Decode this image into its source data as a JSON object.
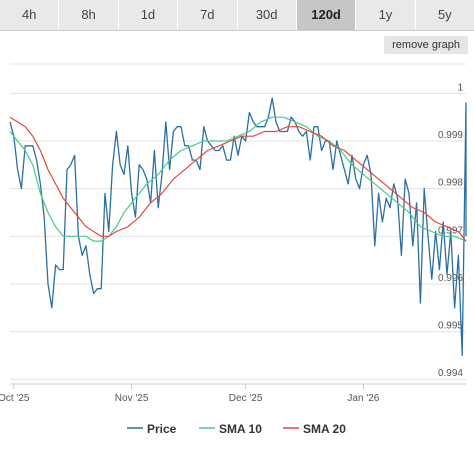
{
  "tabs": [
    {
      "label": "4h",
      "active": false
    },
    {
      "label": "8h",
      "active": false
    },
    {
      "label": "1d",
      "active": false
    },
    {
      "label": "7d",
      "active": false
    },
    {
      "label": "30d",
      "active": false
    },
    {
      "label": "120d",
      "active": true
    },
    {
      "label": "1y",
      "active": false
    },
    {
      "label": "5y",
      "active": false
    }
  ],
  "remove_graph_label": "remove graph",
  "chart_data": {
    "type": "line",
    "title": "",
    "xlabel": "",
    "ylabel": "",
    "ylim": [
      0.9939,
      1.0007
    ],
    "grid": true,
    "legend_position": "bottom",
    "y_ticks": [
      {
        "value": 1.0,
        "label": "1"
      },
      {
        "value": 0.999,
        "label": "0.999"
      },
      {
        "value": 0.998,
        "label": "0.998"
      },
      {
        "value": 0.997,
        "label": "0.997"
      },
      {
        "value": 0.996,
        "label": "0.996"
      },
      {
        "value": 0.995,
        "label": "0.995"
      },
      {
        "value": 0.994,
        "label": "0.994"
      }
    ],
    "x_ticks": [
      {
        "date": "2025-10-01",
        "label": "Oct '25"
      },
      {
        "date": "2025-11-01",
        "label": "Nov '25"
      },
      {
        "date": "2025-12-01",
        "label": "Dec '25"
      },
      {
        "date": "2026-01-01",
        "label": "Jan '26"
      }
    ],
    "x_range": [
      "2025-09-30",
      "2026-01-28"
    ],
    "series": [
      {
        "name": "Price",
        "color": "#2c6fa3",
        "points": [
          [
            "2025-09-30",
            0.9994
          ],
          [
            "2025-10-01",
            0.9991
          ],
          [
            "2025-10-02",
            0.9984
          ],
          [
            "2025-10-03",
            0.998
          ],
          [
            "2025-10-04",
            0.9989
          ],
          [
            "2025-10-05",
            0.9989
          ],
          [
            "2025-10-06",
            0.9989
          ],
          [
            "2025-10-07",
            0.9986
          ],
          [
            "2025-10-08",
            0.9981
          ],
          [
            "2025-10-09",
            0.9974
          ],
          [
            "2025-10-10",
            0.996
          ],
          [
            "2025-10-11",
            0.9955
          ],
          [
            "2025-10-12",
            0.9964
          ],
          [
            "2025-10-13",
            0.9963
          ],
          [
            "2025-10-14",
            0.9963
          ],
          [
            "2025-10-15",
            0.9984
          ],
          [
            "2025-10-16",
            0.9985
          ],
          [
            "2025-10-17",
            0.9987
          ],
          [
            "2025-10-18",
            0.997
          ],
          [
            "2025-10-19",
            0.9966
          ],
          [
            "2025-10-20",
            0.9968
          ],
          [
            "2025-10-21",
            0.9962
          ],
          [
            "2025-10-22",
            0.9958
          ],
          [
            "2025-10-23",
            0.9959
          ],
          [
            "2025-10-24",
            0.9959
          ],
          [
            "2025-10-25",
            0.9979
          ],
          [
            "2025-10-26",
            0.9971
          ],
          [
            "2025-10-27",
            0.9985
          ],
          [
            "2025-10-28",
            0.9992
          ],
          [
            "2025-10-29",
            0.9985
          ],
          [
            "2025-10-30",
            0.9983
          ],
          [
            "2025-10-31",
            0.9989
          ],
          [
            "2025-11-01",
            0.9979
          ],
          [
            "2025-11-02",
            0.9974
          ],
          [
            "2025-11-03",
            0.9985
          ],
          [
            "2025-11-04",
            0.9984
          ],
          [
            "2025-11-05",
            0.9982
          ],
          [
            "2025-11-06",
            0.9977
          ],
          [
            "2025-11-07",
            0.9988
          ],
          [
            "2025-11-08",
            0.9976
          ],
          [
            "2025-11-09",
            0.9983
          ],
          [
            "2025-11-10",
            0.9994
          ],
          [
            "2025-11-11",
            0.9984
          ],
          [
            "2025-11-12",
            0.9992
          ],
          [
            "2025-11-13",
            0.9993
          ],
          [
            "2025-11-14",
            0.9993
          ],
          [
            "2025-11-15",
            0.9989
          ],
          [
            "2025-11-16",
            0.9989
          ],
          [
            "2025-11-17",
            0.9986
          ],
          [
            "2025-11-18",
            0.9986
          ],
          [
            "2025-11-19",
            0.9984
          ],
          [
            "2025-11-20",
            0.9993
          ],
          [
            "2025-11-21",
            0.999
          ],
          [
            "2025-11-22",
            0.9989
          ],
          [
            "2025-11-23",
            0.9988
          ],
          [
            "2025-11-24",
            0.9988
          ],
          [
            "2025-11-25",
            0.9989
          ],
          [
            "2025-11-26",
            0.9986
          ],
          [
            "2025-11-27",
            0.9986
          ],
          [
            "2025-11-28",
            0.9991
          ],
          [
            "2025-11-29",
            0.9987
          ],
          [
            "2025-11-30",
            0.9991
          ],
          [
            "2025-12-01",
            0.999
          ],
          [
            "2025-12-02",
            0.9996
          ],
          [
            "2025-12-03",
            0.9994
          ],
          [
            "2025-12-04",
            0.9993
          ],
          [
            "2025-12-05",
            0.9993
          ],
          [
            "2025-12-06",
            0.9993
          ],
          [
            "2025-12-07",
            0.9995
          ],
          [
            "2025-12-08",
            0.9999
          ],
          [
            "2025-12-09",
            0.9994
          ],
          [
            "2025-12-10",
            0.9992
          ],
          [
            "2025-12-11",
            0.9992
          ],
          [
            "2025-12-12",
            0.9992
          ],
          [
            "2025-12-13",
            0.9995
          ],
          [
            "2025-12-14",
            0.9994
          ],
          [
            "2025-12-15",
            0.9992
          ],
          [
            "2025-12-16",
            0.9991
          ],
          [
            "2025-12-17",
            0.9992
          ],
          [
            "2025-12-18",
            0.9986
          ],
          [
            "2025-12-19",
            0.9993
          ],
          [
            "2025-12-20",
            0.9993
          ],
          [
            "2025-12-21",
            0.9988
          ],
          [
            "2025-12-22",
            0.999
          ],
          [
            "2025-12-23",
            0.999
          ],
          [
            "2025-12-24",
            0.9984
          ],
          [
            "2025-12-25",
            0.999
          ],
          [
            "2025-12-26",
            0.9987
          ],
          [
            "2025-12-27",
            0.9984
          ],
          [
            "2025-12-28",
            0.9981
          ],
          [
            "2025-12-29",
            0.9987
          ],
          [
            "2025-12-30",
            0.9982
          ],
          [
            "2025-12-31",
            0.998
          ],
          [
            "2026-01-01",
            0.9985
          ],
          [
            "2026-01-02",
            0.9987
          ],
          [
            "2026-01-03",
            0.9983
          ],
          [
            "2026-01-04",
            0.9968
          ],
          [
            "2026-01-05",
            0.9979
          ],
          [
            "2026-01-06",
            0.9973
          ],
          [
            "2026-01-07",
            0.9978
          ],
          [
            "2026-01-08",
            0.9976
          ],
          [
            "2026-01-09",
            0.9981
          ],
          [
            "2026-01-10",
            0.9978
          ],
          [
            "2026-01-11",
            0.9966
          ],
          [
            "2026-01-12",
            0.9982
          ],
          [
            "2026-01-13",
            0.9979
          ],
          [
            "2026-01-14",
            0.9968
          ],
          [
            "2026-01-15",
            0.9977
          ],
          [
            "2026-01-16",
            0.9956
          ],
          [
            "2026-01-17",
            0.998
          ],
          [
            "2026-01-18",
            0.997
          ],
          [
            "2026-01-19",
            0.9961
          ],
          [
            "2026-01-20",
            0.9971
          ],
          [
            "2026-01-21",
            0.9963
          ],
          [
            "2026-01-22",
            0.9973
          ],
          [
            "2026-01-23",
            0.9962
          ],
          [
            "2026-01-24",
            0.9971
          ],
          [
            "2026-01-25",
            0.9955
          ],
          [
            "2026-01-26",
            0.9966
          ],
          [
            "2026-01-27",
            0.9945
          ],
          [
            "2026-01-28",
            0.9998
          ],
          [
            "2026-01-28",
            0.997
          ]
        ]
      },
      {
        "name": "SMA 10",
        "color": "#47cc82",
        "points": [
          [
            "2025-09-30",
            0.9992
          ],
          [
            "2025-10-02",
            0.999
          ],
          [
            "2025-10-04",
            0.9988
          ],
          [
            "2025-10-06",
            0.9985
          ],
          [
            "2025-10-08",
            0.9979
          ],
          [
            "2025-10-10",
            0.9975
          ],
          [
            "2025-10-12",
            0.9972
          ],
          [
            "2025-10-14",
            0.997
          ],
          [
            "2025-10-16",
            0.997
          ],
          [
            "2025-10-18",
            0.997
          ],
          [
            "2025-10-20",
            0.997
          ],
          [
            "2025-10-22",
            0.9969
          ],
          [
            "2025-10-24",
            0.9969
          ],
          [
            "2025-10-26",
            0.997
          ],
          [
            "2025-10-28",
            0.9972
          ],
          [
            "2025-10-30",
            0.9975
          ],
          [
            "2025-11-01",
            0.9977
          ],
          [
            "2025-11-03",
            0.9979
          ],
          [
            "2025-11-05",
            0.9981
          ],
          [
            "2025-11-08",
            0.9983
          ],
          [
            "2025-11-11",
            0.9986
          ],
          [
            "2025-11-14",
            0.9988
          ],
          [
            "2025-11-17",
            0.9989
          ],
          [
            "2025-11-20",
            0.999
          ],
          [
            "2025-11-23",
            0.999
          ],
          [
            "2025-11-26",
            0.999
          ],
          [
            "2025-11-29",
            0.9991
          ],
          [
            "2025-12-02",
            0.9992
          ],
          [
            "2025-12-05",
            0.9994
          ],
          [
            "2025-12-08",
            0.9995
          ],
          [
            "2025-12-11",
            0.9995
          ],
          [
            "2025-12-14",
            0.9994
          ],
          [
            "2025-12-17",
            0.9993
          ],
          [
            "2025-12-20",
            0.9991
          ],
          [
            "2025-12-23",
            0.999
          ],
          [
            "2025-12-26",
            0.9988
          ],
          [
            "2025-12-29",
            0.9985
          ],
          [
            "2026-01-01",
            0.9983
          ],
          [
            "2026-01-04",
            0.9981
          ],
          [
            "2026-01-07",
            0.9979
          ],
          [
            "2026-01-10",
            0.9977
          ],
          [
            "2026-01-13",
            0.9975
          ],
          [
            "2026-01-16",
            0.9972
          ],
          [
            "2026-01-19",
            0.9971
          ],
          [
            "2026-01-22",
            0.997
          ],
          [
            "2026-01-25",
            0.997
          ],
          [
            "2026-01-28",
            0.9969
          ]
        ]
      },
      {
        "name": "SMA 20",
        "color": "#e5463e",
        "points": [
          [
            "2025-09-30",
            0.9995
          ],
          [
            "2025-10-02",
            0.9994
          ],
          [
            "2025-10-04",
            0.9993
          ],
          [
            "2025-10-06",
            0.9991
          ],
          [
            "2025-10-08",
            0.9988
          ],
          [
            "2025-10-10",
            0.9984
          ],
          [
            "2025-10-12",
            0.9981
          ],
          [
            "2025-10-14",
            0.9978
          ],
          [
            "2025-10-16",
            0.9976
          ],
          [
            "2025-10-18",
            0.9974
          ],
          [
            "2025-10-20",
            0.9972
          ],
          [
            "2025-10-22",
            0.9971
          ],
          [
            "2025-10-24",
            0.997
          ],
          [
            "2025-10-26",
            0.997
          ],
          [
            "2025-10-28",
            0.9971
          ],
          [
            "2025-10-31",
            0.9972
          ],
          [
            "2025-11-03",
            0.9974
          ],
          [
            "2025-11-06",
            0.9977
          ],
          [
            "2025-11-09",
            0.9979
          ],
          [
            "2025-11-12",
            0.9982
          ],
          [
            "2025-11-15",
            0.9984
          ],
          [
            "2025-11-18",
            0.9986
          ],
          [
            "2025-11-21",
            0.9988
          ],
          [
            "2025-11-24",
            0.9989
          ],
          [
            "2025-11-27",
            0.999
          ],
          [
            "2025-11-30",
            0.9991
          ],
          [
            "2025-12-03",
            0.9991
          ],
          [
            "2025-12-06",
            0.9992
          ],
          [
            "2025-12-09",
            0.9992
          ],
          [
            "2025-12-12",
            0.9993
          ],
          [
            "2025-12-15",
            0.9993
          ],
          [
            "2025-12-18",
            0.9992
          ],
          [
            "2025-12-21",
            0.9991
          ],
          [
            "2025-12-24",
            0.9989
          ],
          [
            "2025-12-27",
            0.9988
          ],
          [
            "2025-12-30",
            0.9986
          ],
          [
            "2026-01-02",
            0.9984
          ],
          [
            "2026-01-05",
            0.9982
          ],
          [
            "2026-01-08",
            0.998
          ],
          [
            "2026-01-11",
            0.9978
          ],
          [
            "2026-01-14",
            0.9976
          ],
          [
            "2026-01-17",
            0.9975
          ],
          [
            "2026-01-20",
            0.9973
          ],
          [
            "2026-01-23",
            0.9972
          ],
          [
            "2026-01-26",
            0.9971
          ],
          [
            "2026-01-28",
            0.9969
          ]
        ]
      }
    ]
  }
}
